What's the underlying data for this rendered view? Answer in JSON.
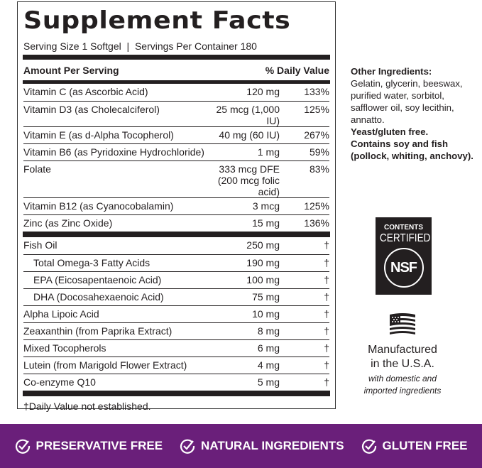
{
  "facts": {
    "title": "Supplement Facts",
    "serving": "Serving Size 1 Softgel  |  Servings Per Container 180",
    "amount_header": "Amount Per Serving",
    "dv_header": "% Daily Value",
    "vitamins": [
      {
        "name": "Vitamin C (as Ascorbic Acid)",
        "amount": "120 mg",
        "dv": "133%"
      },
      {
        "name": "Vitamin D3 (as Cholecalciferol)",
        "amount": "25 mcg (1,000 IU)",
        "dv": "125%"
      },
      {
        "name": "Vitamin E (as d-Alpha Tocopherol)",
        "amount": "40 mg (60 IU)",
        "dv": "267%"
      },
      {
        "name": "Vitamin B6 (as Pyridoxine Hydrochloride)",
        "amount": "1 mg",
        "dv": "59%"
      },
      {
        "name": "Folate",
        "amount": "333 mcg DFE",
        "amount2": "(200 mcg folic acid)",
        "dv": "83%"
      },
      {
        "name": "Vitamin B12 (as Cyanocobalamin)",
        "amount": "3 mcg",
        "dv": "125%"
      },
      {
        "name": "Zinc (as Zinc Oxide)",
        "amount": "15 mg",
        "dv": "136%"
      }
    ],
    "others": [
      {
        "name": "Fish Oil",
        "amount": "250 mg",
        "dv": "†"
      },
      {
        "name": "Total Omega-3 Fatty Acids",
        "amount": "190 mg",
        "dv": "†",
        "indent": 1
      },
      {
        "name": "EPA (Eicosapentaenoic Acid)",
        "amount": "100 mg",
        "dv": "†",
        "indent": 1
      },
      {
        "name": "DHA (Docosahexaenoic Acid)",
        "amount": "75 mg",
        "dv": "†",
        "indent": 1
      },
      {
        "name": "Alpha Lipoic Acid",
        "amount": "10 mg",
        "dv": "†"
      },
      {
        "name": "Zeaxanthin (from Paprika Extract)",
        "amount": "8 mg",
        "dv": "†"
      },
      {
        "name": "Mixed Tocopherols",
        "amount": "6 mg",
        "dv": "†"
      },
      {
        "name": "Lutein (from Marigold Flower Extract)",
        "amount": "4 mg",
        "dv": "†"
      },
      {
        "name": "Co-enzyme Q10",
        "amount": "5 mg",
        "dv": "†"
      }
    ],
    "footnote": "†Daily Value not established."
  },
  "other_ingredients": {
    "heading": "Other Ingredients:",
    "list": "Gelatin, glycerin, beeswax, purified water, sorbitol, safflower oil, soy lecithin, annatto.",
    "note1": "Yeast/gluten free.",
    "note2": "Contains soy and fish (pollock, whiting, anchovy)."
  },
  "nsf": {
    "line1": "CONTENTS",
    "line2": "CERTIFIED",
    "logo": "NSF"
  },
  "usa": {
    "icon": "us-flag-icon",
    "line1": "Manufactured",
    "line2": "in the U.S.A.",
    "line3": "with domestic and imported ingredients"
  },
  "band": {
    "color": "#6a1f7a",
    "badges": [
      "PRESERVATIVE FREE",
      "NATURAL INGREDIENTS",
      "GLUTEN FREE"
    ],
    "icon": "check-circle-icon"
  }
}
